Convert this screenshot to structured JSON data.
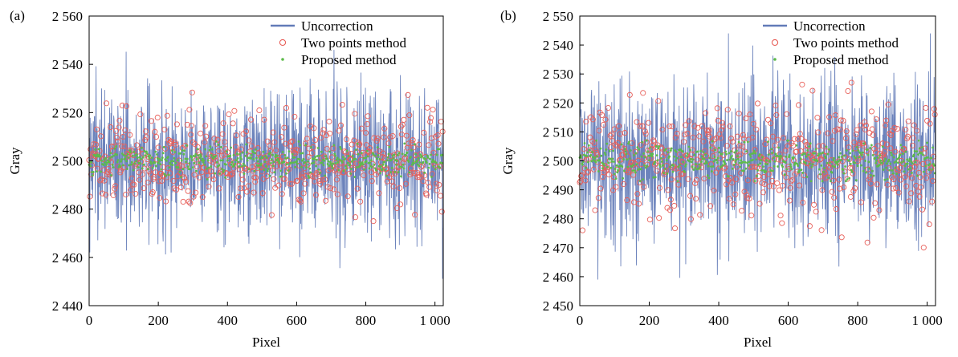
{
  "chart_data": [
    {
      "type": "line",
      "panel_label": "(a)",
      "xlabel": "Pixel",
      "ylabel": "Gray",
      "xlim": [
        0,
        1024
      ],
      "ylim": [
        2440,
        2560
      ],
      "x_ticks": [
        0,
        200,
        400,
        600,
        800,
        1000
      ],
      "x_tick_labels": [
        "0",
        "200",
        "400",
        "600",
        "800",
        "1 000"
      ],
      "y_ticks": [
        2440,
        2460,
        2480,
        2500,
        2520,
        2540,
        2560
      ],
      "y_tick_labels": [
        "2 440",
        "2 460",
        "2 480",
        "2 500",
        "2 520",
        "2 540",
        "2 560"
      ],
      "grid": false,
      "legend_position": "top-right",
      "series": [
        {
          "name": "Uncorrection",
          "style": "line",
          "color": "#3b5aa6",
          "mean": 2500,
          "spread": 15,
          "min": 2448,
          "max": 2546
        },
        {
          "name": "Two points method",
          "style": "circle-marker",
          "color": "#e8605a",
          "mean": 2500,
          "spread": 9,
          "min": 2472,
          "max": 2534
        },
        {
          "name": "Proposed method",
          "style": "dot-marker",
          "color": "#5dbb4a",
          "mean": 2500,
          "spread": 3,
          "min": 2492,
          "max": 2508
        }
      ]
    },
    {
      "type": "line",
      "panel_label": "(b)",
      "xlabel": "Pixel",
      "ylabel": "Gray",
      "xlim": [
        0,
        1024
      ],
      "ylim": [
        2450,
        2550
      ],
      "x_ticks": [
        0,
        200,
        400,
        600,
        800,
        1000
      ],
      "x_tick_labels": [
        "0",
        "200",
        "400",
        "600",
        "800",
        "1 000"
      ],
      "y_ticks": [
        2450,
        2460,
        2470,
        2480,
        2490,
        2500,
        2510,
        2520,
        2530,
        2540,
        2550
      ],
      "y_tick_labels": [
        "2 450",
        "2 460",
        "2 470",
        "2 480",
        "2 490",
        "2 500",
        "2 510",
        "2 520",
        "2 530",
        "2 540",
        "2 550"
      ],
      "grid": false,
      "legend_position": "top-right",
      "series": [
        {
          "name": "Uncorrection",
          "style": "line",
          "color": "#3b5aa6",
          "mean": 2500,
          "spread": 14,
          "min": 2459,
          "max": 2544
        },
        {
          "name": "Two points method",
          "style": "circle-marker",
          "color": "#e8605a",
          "mean": 2500,
          "spread": 9,
          "min": 2466,
          "max": 2527
        },
        {
          "name": "Proposed method",
          "style": "dot-marker",
          "color": "#5dbb4a",
          "mean": 2500,
          "spread": 3,
          "min": 2493,
          "max": 2507
        }
      ]
    }
  ]
}
